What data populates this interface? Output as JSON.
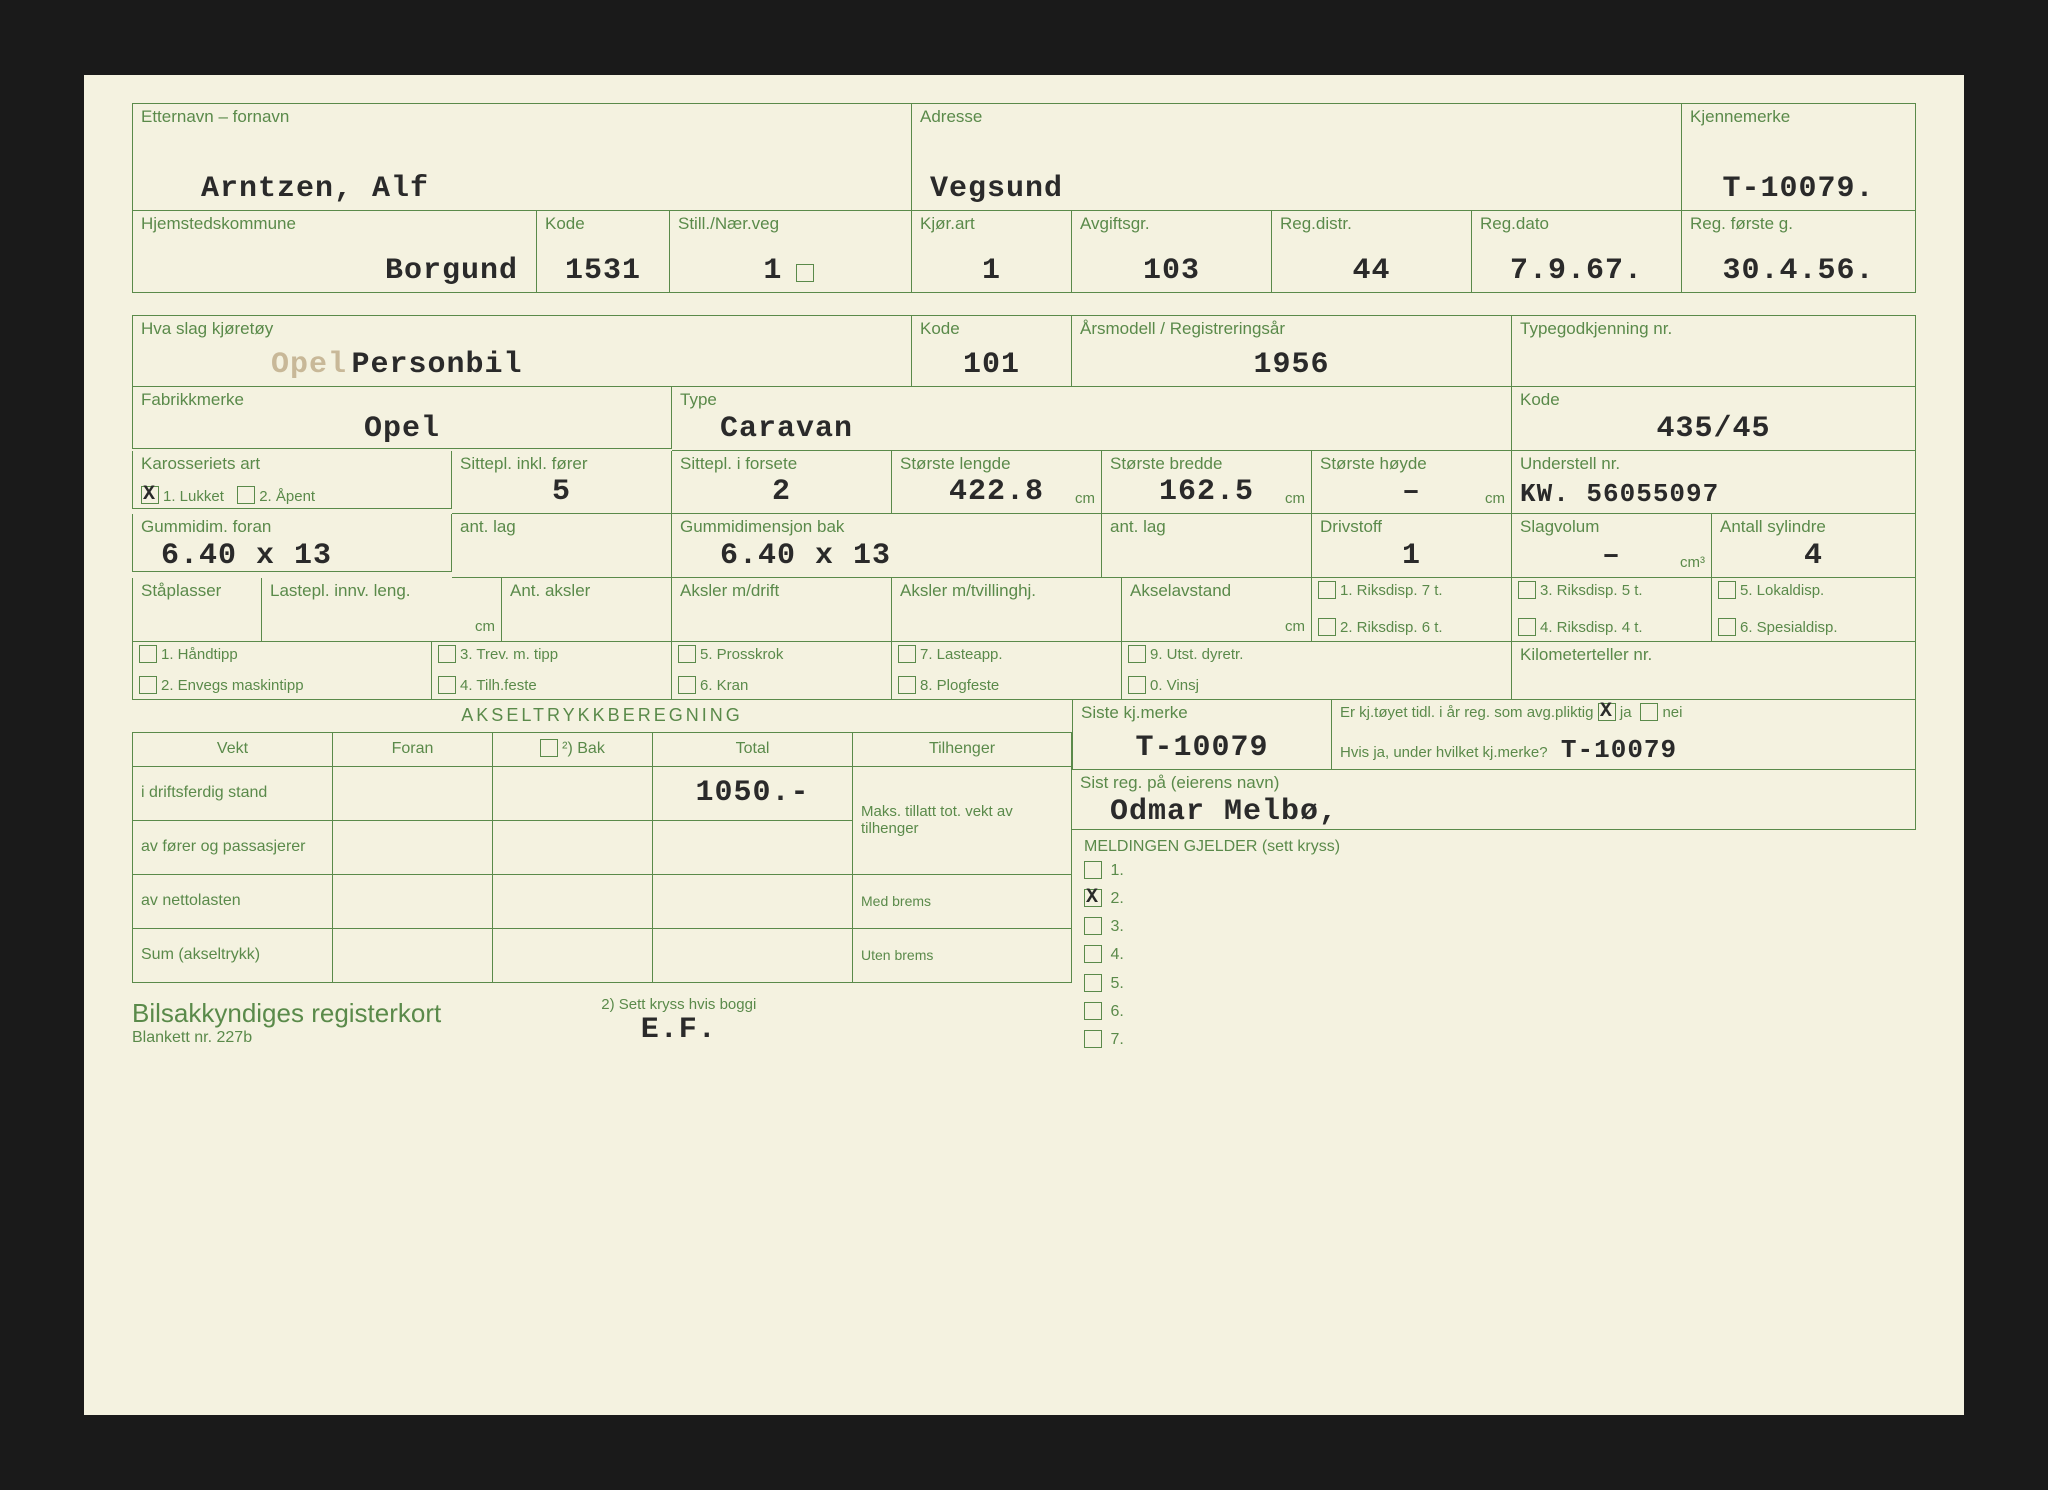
{
  "colors": {
    "line": "#5a8a4a",
    "paper": "#f4f2e0",
    "ink": "#2a2a2a"
  },
  "row1": {
    "name_lbl": "Etternavn – fornavn",
    "name": "Arntzen, Alf",
    "addr_lbl": "Adresse",
    "addr": "Vegsund",
    "mark_lbl": "Kjennemerke",
    "mark": "T-10079."
  },
  "row2": {
    "komm_lbl": "Hjemstedskommune",
    "komm": "Borgund",
    "kode_lbl": "Kode",
    "kode": "1531",
    "still_lbl": "Still./Nær.veg",
    "still": "1",
    "kjor_lbl": "Kjør.art",
    "kjor": "1",
    "avg_lbl": "Avgiftsgr.",
    "avg": "103",
    "distr_lbl": "Reg.distr.",
    "distr": "44",
    "dato_lbl": "Reg.dato",
    "dato": "7.9.67.",
    "forste_lbl": "Reg. første g.",
    "forste": "30.4.56."
  },
  "row3": {
    "slag_lbl": "Hva slag kjøretøy",
    "slag_pre": "Opel",
    "slag": "Personbil",
    "kode_lbl": "Kode",
    "kode": "101",
    "ars_lbl": "Årsmodell / Registreringsår",
    "ars": "1956",
    "type_lbl": "Typegodkjenning nr.",
    "type": ""
  },
  "row4": {
    "fabr_lbl": "Fabrikkmerke",
    "fabr": "Opel",
    "type_lbl": "Type",
    "type": "Caravan",
    "kode_lbl": "Kode",
    "kode": "435/45"
  },
  "row5": {
    "kar_lbl": "Karosseriets art",
    "kar_o1": "1. Lukket",
    "kar_o2": "2. Åpent",
    "sitte_lbl": "Sittepl. inkl. fører",
    "sitte": "5",
    "sitte2_lbl": "Sittepl. i forsete",
    "sitte2": "2",
    "leng_lbl": "Største lengde",
    "leng": "422.8",
    "bred_lbl": "Største bredde",
    "bred": "162.5",
    "hoy_lbl": "Største høyde",
    "hoy": "–",
    "und_lbl": "Understell nr.",
    "und": "KW. 56055097"
  },
  "row6": {
    "gumf_lbl": "Gummidim. foran",
    "gumf": "6.40 x 13",
    "antf_lbl": "ant. lag",
    "antf": "",
    "gumb_lbl": "Gummidimensjon bak",
    "gumb": "6.40 x 13",
    "antb_lbl": "ant. lag",
    "antb": "",
    "driv_lbl": "Drivstoff",
    "driv": "1",
    "slag_lbl": "Slagvolum",
    "slag": "–",
    "syl_lbl": "Antall sylindre",
    "syl": "4"
  },
  "row7": {
    "sta_lbl": "Ståplasser",
    "last_lbl": "Lastepl. innv. leng.",
    "aks_lbl": "Ant. aksler",
    "aksd_lbl": "Aksler m/drift",
    "akst_lbl": "Aksler m/tvillinghj.",
    "akav_lbl": "Akselavstand",
    "r1": "1. Riksdisp. 7 t.",
    "r2": "2. Riksdisp. 6 t.",
    "r3": "3. Riksdisp. 5 t.",
    "r4": "4. Riksdisp. 4 t.",
    "r5": "5. Lokaldisp.",
    "r6": "6. Spesialdisp."
  },
  "row8": {
    "h1": "1. Håndtipp",
    "h2": "2. Envegs maskintipp",
    "h3": "3. Trev. m. tipp",
    "h4": "4. Tilh.feste",
    "h5": "5. Prosskrok",
    "h6": "6. Kran",
    "h7": "7. Lasteapp.",
    "h8": "8. Plogfeste",
    "h9": "9. Utst. dyretr.",
    "h0": "0. Vinsj",
    "km_lbl": "Kilometerteller nr."
  },
  "akt": {
    "title": "AKSELTRYKKBEREGNING",
    "h_vekt": "Vekt",
    "h_foran": "Foran",
    "h_bak": "²) Bak",
    "h_total": "Total",
    "h_tilh": "Tilhenger",
    "r1": "i driftsferdig stand",
    "total1": "1050.-",
    "r2": "av fører og passasjerer",
    "r3": "av nettolasten",
    "r4": "Sum (akseltrykk)",
    "tilh1": "Maks. tillatt tot. vekt av tilhenger",
    "tilh2": "Med brems",
    "tilh3": "Uten brems"
  },
  "right": {
    "siste_lbl": "Siste kj.merke",
    "siste": "T-10079",
    "tid_lbl": "Er kj.tøyet tidl. i år reg. som avg.pliktig",
    "ja": "ja",
    "nei": "nei",
    "hvis_lbl": "Hvis ja, under hvilket kj.merke?",
    "hvis": "T-10079",
    "eier_lbl": "Sist reg. på (eierens navn)",
    "eier": "Odmar Melbø,",
    "meld_lbl": "MELDINGEN GJELDER (sett kryss)",
    "opts": [
      "1.",
      "2.",
      "3.",
      "4.",
      "5.",
      "6.",
      "7."
    ],
    "checked": 1
  },
  "footer": {
    "title": "Bilsakkyndiges registerkort",
    "sub": "Blankett nr. 227b",
    "note": "2) Sett kryss hvis boggi",
    "ef": "E.F."
  }
}
